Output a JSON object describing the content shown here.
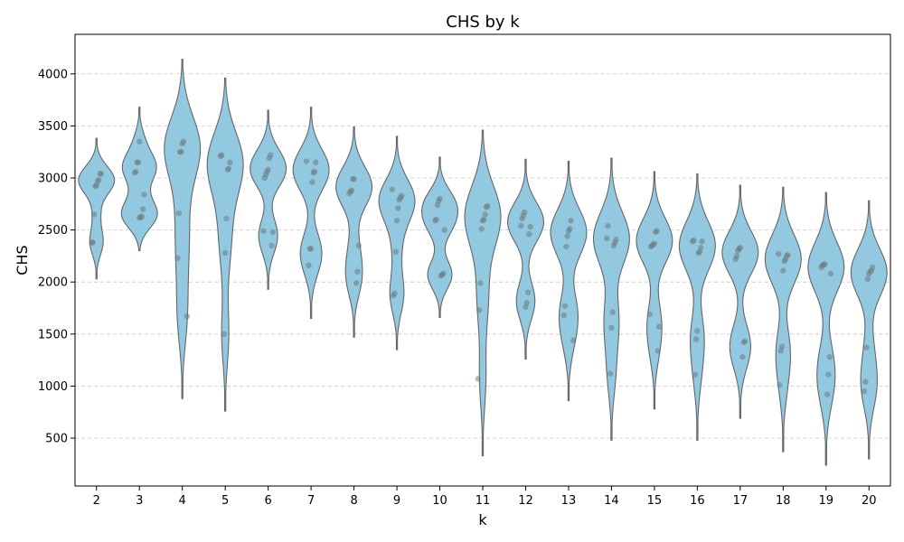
{
  "chart_data": {
    "type": "violin",
    "title": "CHS by k",
    "xlabel": "k",
    "ylabel": "CHS",
    "categories": [
      "2",
      "3",
      "4",
      "5",
      "6",
      "7",
      "8",
      "9",
      "10",
      "11",
      "12",
      "13",
      "14",
      "15",
      "16",
      "17",
      "18",
      "19",
      "20"
    ],
    "ylim": [
      40,
      4380
    ],
    "yticks": [
      500,
      1000,
      1500,
      2000,
      2500,
      3000,
      3500,
      4000
    ],
    "grid": "y-dashed",
    "violin_color": "#92c9e0",
    "violin_edge_color": "#666666",
    "point_color": "#6b7b80",
    "series": [
      {
        "name": "2",
        "min": 2030,
        "max": 3380,
        "points": [
          2380,
          2380,
          2650,
          2920,
          2930,
          2970,
          2980,
          3040,
          3040
        ]
      },
      {
        "name": "3",
        "min": 2300,
        "max": 3680,
        "points": [
          2620,
          2620,
          2630,
          2700,
          2840,
          3050,
          3060,
          3150,
          3150,
          3350
        ]
      },
      {
        "name": "4",
        "min": 880,
        "max": 4140,
        "points": [
          1670,
          2230,
          2660,
          3250,
          3250,
          3330,
          3350
        ]
      },
      {
        "name": "5",
        "min": 760,
        "max": 3960,
        "points": [
          1500,
          2280,
          2610,
          3080,
          3090,
          3150,
          3210,
          3220
        ]
      },
      {
        "name": "6",
        "min": 1930,
        "max": 3650,
        "points": [
          2350,
          2480,
          2490,
          3000,
          3030,
          3060,
          3080,
          3190,
          3220
        ]
      },
      {
        "name": "7",
        "min": 1650,
        "max": 3680,
        "points": [
          2160,
          2320,
          2320,
          2960,
          3050,
          3060,
          3150,
          3160
        ]
      },
      {
        "name": "8",
        "min": 1470,
        "max": 3490,
        "points": [
          1990,
          2100,
          2350,
          2850,
          2870,
          2880,
          2990,
          2990
        ]
      },
      {
        "name": "9",
        "min": 1350,
        "max": 3400,
        "points": [
          1870,
          1890,
          2290,
          2590,
          2710,
          2790,
          2810,
          2830,
          2890
        ]
      },
      {
        "name": "10",
        "min": 1660,
        "max": 3200,
        "points": [
          2060,
          2070,
          2080,
          2500,
          2590,
          2600,
          2740,
          2780,
          2800
        ]
      },
      {
        "name": "11",
        "min": 330,
        "max": 3460,
        "points": [
          1070,
          1730,
          1990,
          2510,
          2590,
          2600,
          2650,
          2720,
          2730
        ]
      },
      {
        "name": "12",
        "min": 1260,
        "max": 3180,
        "points": [
          1760,
          1800,
          1900,
          2460,
          2530,
          2540,
          2610,
          2640,
          2670
        ]
      },
      {
        "name": "13",
        "min": 860,
        "max": 3160,
        "points": [
          1440,
          1680,
          1770,
          2340,
          2440,
          2490,
          2510,
          2590
        ]
      },
      {
        "name": "14",
        "min": 480,
        "max": 3190,
        "points": [
          1120,
          1560,
          1710,
          2350,
          2380,
          2410,
          2420,
          2540
        ]
      },
      {
        "name": "15",
        "min": 780,
        "max": 3060,
        "points": [
          1340,
          1570,
          1690,
          2340,
          2350,
          2360,
          2370,
          2480,
          2490
        ]
      },
      {
        "name": "16",
        "min": 480,
        "max": 3040,
        "points": [
          1110,
          1450,
          1530,
          2280,
          2290,
          2330,
          2390,
          2390,
          2400
        ]
      },
      {
        "name": "17",
        "min": 690,
        "max": 2930,
        "points": [
          1280,
          1420,
          1430,
          2220,
          2250,
          2300,
          2320,
          2330
        ]
      },
      {
        "name": "18",
        "min": 370,
        "max": 2910,
        "points": [
          1010,
          1340,
          1380,
          2110,
          2200,
          2220,
          2250,
          2260,
          2270
        ]
      },
      {
        "name": "19",
        "min": 240,
        "max": 2860,
        "points": [
          920,
          1110,
          1280,
          2080,
          2140,
          2160,
          2170,
          2170
        ]
      },
      {
        "name": "20",
        "min": 300,
        "max": 2780,
        "points": [
          950,
          1040,
          1370,
          2030,
          2080,
          2100,
          2110,
          2140
        ]
      }
    ]
  }
}
